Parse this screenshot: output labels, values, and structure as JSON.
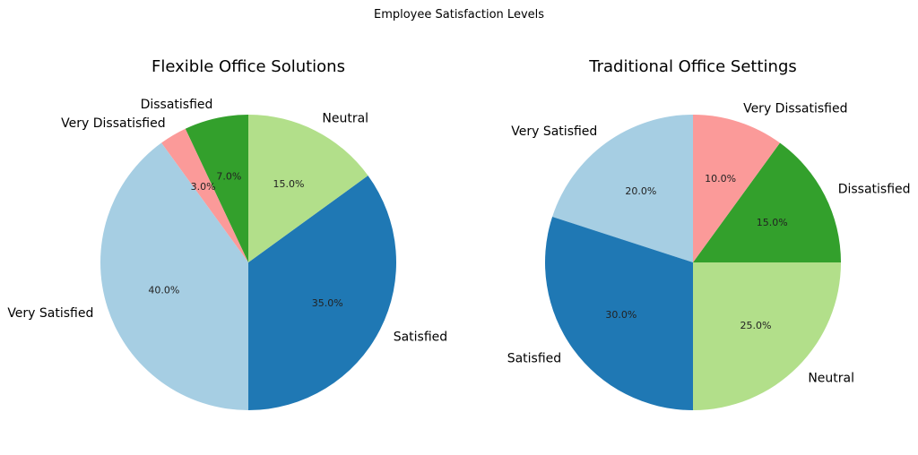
{
  "figure_title": "Employee Satisfaction Levels",
  "chart_data": [
    {
      "type": "pie",
      "title": "Flexible Office Solutions",
      "start_angle_deg": 90,
      "direction": "counterclockwise",
      "categories": [
        "Dissatisfied",
        "Very Dissatisfied",
        "Very Satisfied",
        "Satisfied",
        "Neutral"
      ],
      "values": [
        7.0,
        3.0,
        40.0,
        35.0,
        15.0
      ],
      "value_labels": [
        "7.0%",
        "3.0%",
        "40.0%",
        "35.0%",
        "15.0%"
      ],
      "colors": [
        "#33a02c",
        "#fb9a99",
        "#a6cee3",
        "#1f78b4",
        "#b2df8a"
      ]
    },
    {
      "type": "pie",
      "title": "Traditional Office Settings",
      "start_angle_deg": 90,
      "direction": "counterclockwise",
      "categories": [
        "Very Satisfied",
        "Satisfied",
        "Neutral",
        "Dissatisfied",
        "Very Dissatisfied"
      ],
      "values": [
        20.0,
        30.0,
        25.0,
        15.0,
        10.0
      ],
      "value_labels": [
        "20.0%",
        "30.0%",
        "25.0%",
        "15.0%",
        "10.0%"
      ],
      "colors": [
        "#a6cee3",
        "#1f78b4",
        "#b2df8a",
        "#33a02c",
        "#fb9a99"
      ]
    }
  ]
}
